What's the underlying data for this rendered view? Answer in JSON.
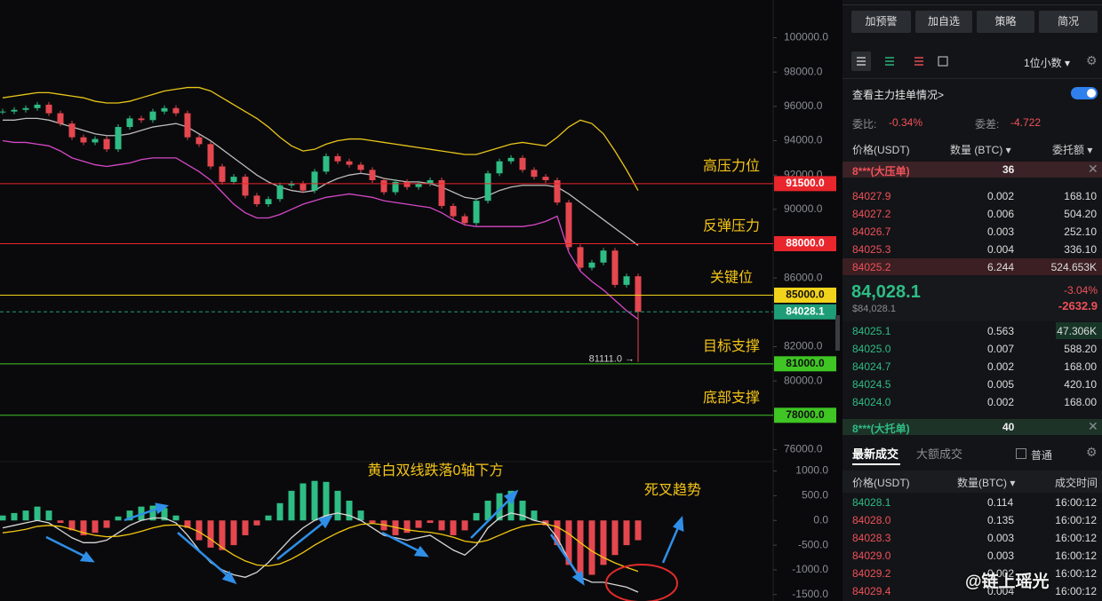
{
  "chart": {
    "ylim": [
      75300,
      102200
    ],
    "price_ticks": [
      {
        "value": 100000,
        "label": "100000.0"
      },
      {
        "value": 98000,
        "label": "98000.0"
      },
      {
        "value": 96000,
        "label": "96000.0"
      },
      {
        "value": 94000,
        "label": "94000.0"
      },
      {
        "value": 92000,
        "label": "92000.0"
      },
      {
        "value": 90000,
        "label": "90000.0"
      },
      {
        "value": 86000,
        "label": "86000.0"
      },
      {
        "value": 82000,
        "label": "82000.0"
      },
      {
        "value": 80000,
        "label": "80000.0"
      },
      {
        "value": 76000,
        "label": "76000.0"
      }
    ],
    "up_color": "#2ebd85",
    "down_color": "#e5474f",
    "closes": [
      95700,
      95800,
      95900,
      96100,
      95600,
      95000,
      94200,
      93900,
      94100,
      93500,
      94800,
      95300,
      95200,
      95700,
      95900,
      95600,
      94200,
      93800,
      92500,
      91600,
      91900,
      90800,
      90300,
      90600,
      91400,
      91500,
      91100,
      92200,
      93100,
      92800,
      92600,
      92300,
      91700,
      91000,
      91600,
      91300,
      91500,
      91700,
      90200,
      89600,
      89200,
      90500,
      92100,
      92800,
      93000,
      92300,
      91900,
      91700,
      90400,
      87800,
      86600,
      86900,
      87600,
      85600,
      86100,
      84028.1
    ],
    "bb_upper": [
      96500,
      96600,
      96700,
      96800,
      96800,
      96700,
      96600,
      96500,
      96300,
      96200,
      96200,
      96300,
      96500,
      96700,
      96900,
      97000,
      97100,
      97100,
      96900,
      96500,
      96100,
      95700,
      95300,
      94800,
      94200,
      93700,
      93400,
      93500,
      93800,
      94000,
      94100,
      94100,
      94000,
      93900,
      93800,
      93700,
      93600,
      93500,
      93400,
      93300,
      93200,
      93200,
      93400,
      93600,
      93800,
      93900,
      93800,
      93700,
      94200,
      94800,
      95200,
      95000,
      94400,
      93400,
      92300,
      91100
    ],
    "bb_mid": [
      95200,
      95200,
      95300,
      95300,
      95200,
      95000,
      94800,
      94600,
      94400,
      94300,
      94300,
      94400,
      94600,
      94800,
      94900,
      95000,
      94800,
      94400,
      94000,
      93500,
      93000,
      92500,
      92000,
      91600,
      91300,
      91100,
      91000,
      91100,
      91500,
      91800,
      92000,
      92100,
      92000,
      91800,
      91700,
      91600,
      91600,
      91500,
      91300,
      91000,
      90700,
      90600,
      90800,
      91100,
      91300,
      91400,
      91400,
      91400,
      91300,
      90900,
      90400,
      89900,
      89400,
      88900,
      88400,
      87900
    ],
    "bb_lower": [
      94000,
      93900,
      93900,
      93800,
      93700,
      93400,
      93000,
      92800,
      92600,
      92500,
      92600,
      92700,
      92900,
      93000,
      93000,
      93000,
      92600,
      92200,
      91700,
      91000,
      90300,
      89800,
      89500,
      89500,
      89700,
      90000,
      90300,
      90500,
      90700,
      90800,
      90900,
      90800,
      90700,
      90500,
      90400,
      90300,
      90200,
      90100,
      89800,
      89400,
      89100,
      89000,
      89000,
      89000,
      89000,
      89000,
      89100,
      89300,
      89600,
      87500,
      86400,
      85800,
      85300,
      84700,
      84100,
      83600
    ],
    "levels": [
      {
        "value": 91500,
        "label": "91500.0",
        "color": "#e8262c",
        "text_color": "#ffffff",
        "note": "高压力位"
      },
      {
        "value": 88000,
        "label": "88000.0",
        "color": "#e8262c",
        "text_color": "#ffffff",
        "note": "反弹压力"
      },
      {
        "value": 85000,
        "label": "85000.0",
        "color": "#f2d31b",
        "text_color": "#111111",
        "note": "关键位"
      },
      {
        "value": 81000,
        "label": "81000.0",
        "color": "#3fc524",
        "text_color": "#111111",
        "note": "目标支撑"
      },
      {
        "value": 78000,
        "label": "78000.0",
        "color": "#3fc524",
        "text_color": "#111111",
        "note": "底部支撑"
      }
    ],
    "last": {
      "value": 84028.1,
      "color": "#1e9d78"
    },
    "low": {
      "value": 81111,
      "label": "81111.0 →"
    },
    "macd": {
      "ylim": [
        -1630,
        1190
      ],
      "ticks": [
        {
          "value": 1000,
          "label": "1000.0"
        },
        {
          "value": 500,
          "label": "500.0"
        },
        {
          "value": 0,
          "label": "0.0"
        },
        {
          "value": -500,
          "label": "-500.0"
        },
        {
          "value": -1000,
          "label": "-1000.0"
        },
        {
          "value": -1500,
          "label": "-1500.0"
        }
      ],
      "hist": [
        100,
        150,
        200,
        280,
        200,
        -50,
        -200,
        -300,
        -250,
        -150,
        80,
        200,
        280,
        300,
        250,
        100,
        -150,
        -400,
        -550,
        -600,
        -500,
        -300,
        -100,
        100,
        350,
        600,
        750,
        800,
        780,
        600,
        400,
        200,
        -50,
        -200,
        -300,
        -250,
        -150,
        -50,
        -200,
        -300,
        -200,
        150,
        400,
        550,
        600,
        400,
        200,
        -100,
        -500,
        -900,
        -1150,
        -1100,
        -900,
        -700,
        -500,
        -400
      ],
      "dif": [
        -150,
        -100,
        -50,
        0,
        -50,
        -200,
        -350,
        -450,
        -450,
        -400,
        -250,
        -100,
        0,
        50,
        50,
        -50,
        -300,
        -600,
        -850,
        -1000,
        -1100,
        -1150,
        -1050,
        -850,
        -600,
        -350,
        -150,
        0,
        100,
        150,
        100,
        0,
        -150,
        -300,
        -350,
        -400,
        -350,
        -300,
        -450,
        -600,
        -700,
        -500,
        -150,
        50,
        150,
        100,
        0,
        -50,
        -350,
        -800,
        -1150,
        -1250,
        -1250,
        -1300,
        -1350,
        -1450
      ],
      "dea": [
        -250,
        -220,
        -180,
        -120,
        -100,
        -120,
        -180,
        -250,
        -300,
        -330,
        -320,
        -280,
        -220,
        -150,
        -100,
        -90,
        -130,
        -230,
        -380,
        -550,
        -700,
        -820,
        -900,
        -920,
        -880,
        -780,
        -650,
        -500,
        -370,
        -250,
        -150,
        -80,
        -60,
        -90,
        -140,
        -190,
        -220,
        -240,
        -280,
        -340,
        -420,
        -450,
        -400,
        -300,
        -200,
        -120,
        -80,
        -70,
        -130,
        -270,
        -450,
        -620,
        -750,
        -860,
        -950,
        -1030
      ],
      "dif_color": "#d8d8d8",
      "dea_color": "#f2c811",
      "annotation": "黄白双线跌落0轴下方",
      "annotation2": "死叉趋势"
    }
  },
  "panel": {
    "buttons": [
      "加预警",
      "加自选",
      "策略",
      "简况"
    ],
    "decimals": "1位小数 ▾",
    "main_orders": "查看主力挂单情况>",
    "ratio_label": "委比:",
    "ratio": "-0.34%",
    "diff_label": "委差:",
    "diff": "-4.722",
    "book_header": [
      "价格(USDT)",
      "数量 (BTC) ▾",
      "委托额 ▾"
    ],
    "big_ask": [
      "8***(大压单)",
      "36"
    ],
    "asks": [
      [
        "84027.9",
        "0.002",
        "168.10"
      ],
      [
        "84027.2",
        "0.006",
        "504.20"
      ],
      [
        "84026.7",
        "0.003",
        "252.10"
      ],
      [
        "84025.3",
        "0.004",
        "336.10"
      ],
      [
        "84025.2",
        "6.244",
        "524.653K"
      ]
    ],
    "mid_price": "84,028.1",
    "mid_usd": "$84,028.1",
    "change_pct": "-3.04%",
    "change": "-2632.9",
    "bids": [
      [
        "84025.1",
        "0.563",
        "47.306K"
      ],
      [
        "84025.0",
        "0.007",
        "588.20"
      ],
      [
        "84024.7",
        "0.002",
        "168.00"
      ],
      [
        "84024.5",
        "0.005",
        "420.10"
      ],
      [
        "84024.0",
        "0.002",
        "168.00"
      ]
    ],
    "big_bid": [
      "8***(大托单)",
      "40"
    ],
    "tabs": [
      "最新成交",
      "大额成交"
    ],
    "normal": "普通",
    "trade_header": [
      "价格(USDT)",
      "数量(BTC) ▾",
      "成交时间"
    ],
    "trades": [
      [
        "84028.1",
        "0.114",
        "16:00:12"
      ],
      [
        "84028.0",
        "0.135",
        "16:00:12"
      ],
      [
        "84028.3",
        "0.003",
        "16:00:12"
      ],
      [
        "84029.0",
        "0.003",
        "16:00:12"
      ],
      [
        "84029.2",
        "0.002",
        "16:00:12"
      ],
      [
        "84029.4",
        "0.004",
        "16:00:12"
      ]
    ],
    "watermark": "@链上瑶光"
  }
}
